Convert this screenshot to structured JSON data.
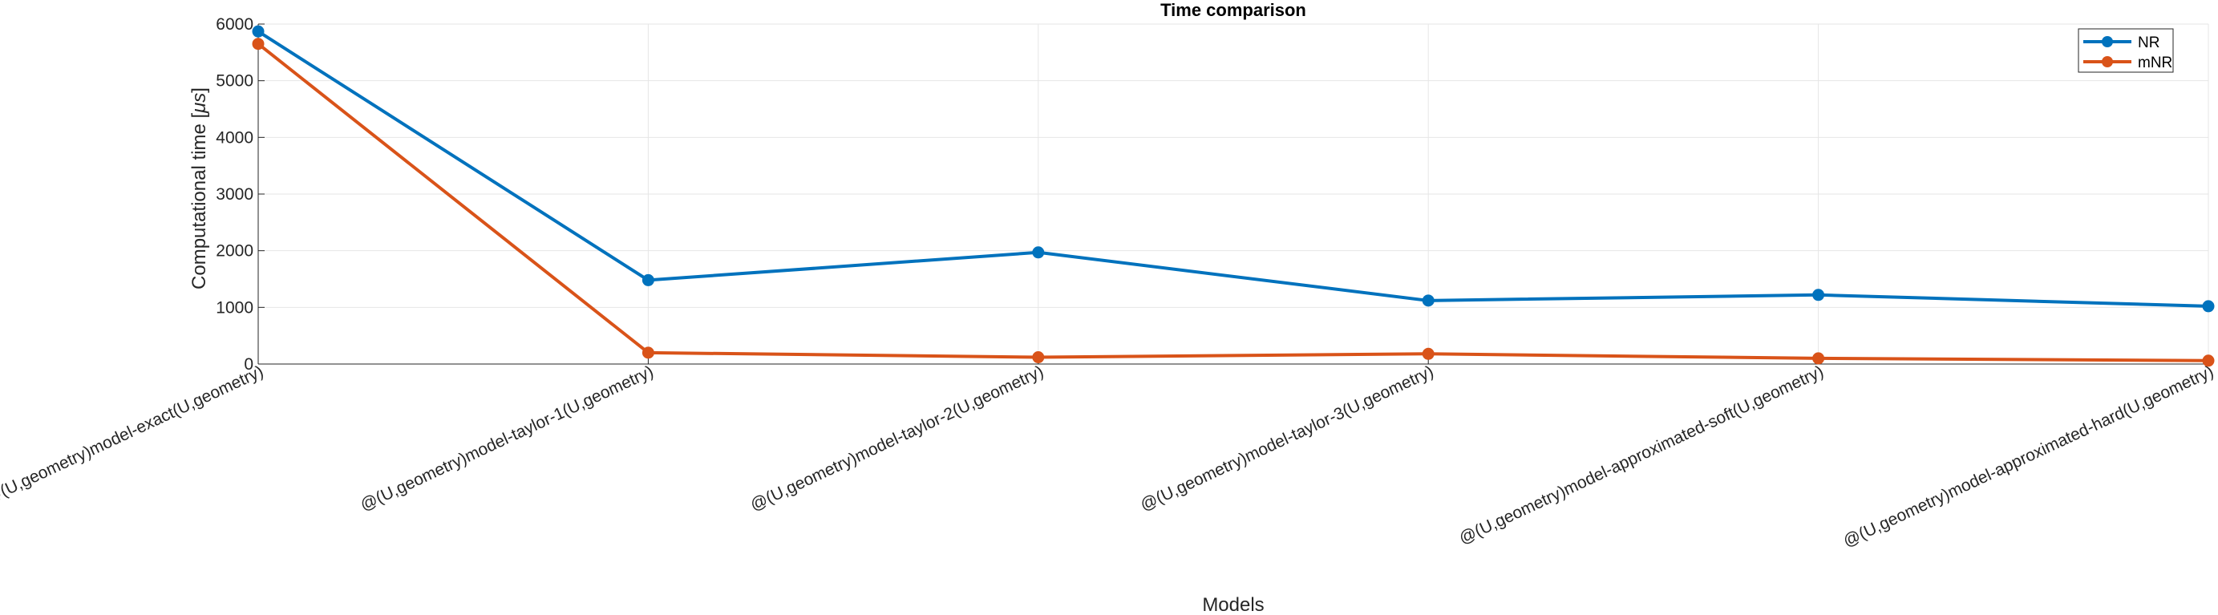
{
  "chart_data": {
    "type": "line",
    "title": "Time comparison",
    "xlabel": "Models",
    "ylabel_prefix": "Computational time [",
    "ylabel_unit": "μs",
    "ylabel_suffix": "]",
    "categories": [
      "@(U,geometry)model-exact(U,geometry)",
      "@(U,geometry)model-taylor-1(U,geometry)",
      "@(U,geometry)model-taylor-2(U,geometry)",
      "@(U,geometry)model-taylor-3(U,geometry)",
      "@(U,geometry)model-approximated-soft(U,geometry)",
      "@(U,geometry)model-approximated-hard(U,geometry)"
    ],
    "ylim": [
      0,
      6000
    ],
    "yticks": [
      "0",
      "1000",
      "2000",
      "3000",
      "4000",
      "5000",
      "6000"
    ],
    "grid": true,
    "legend_position": "top-right",
    "series": [
      {
        "name": "NR",
        "color": "#0072BD",
        "values": [
          5870,
          1480,
          1970,
          1120,
          1220,
          1020
        ]
      },
      {
        "name": "mNR",
        "color": "#D95319",
        "values": [
          5650,
          200,
          120,
          180,
          100,
          60
        ]
      }
    ]
  }
}
